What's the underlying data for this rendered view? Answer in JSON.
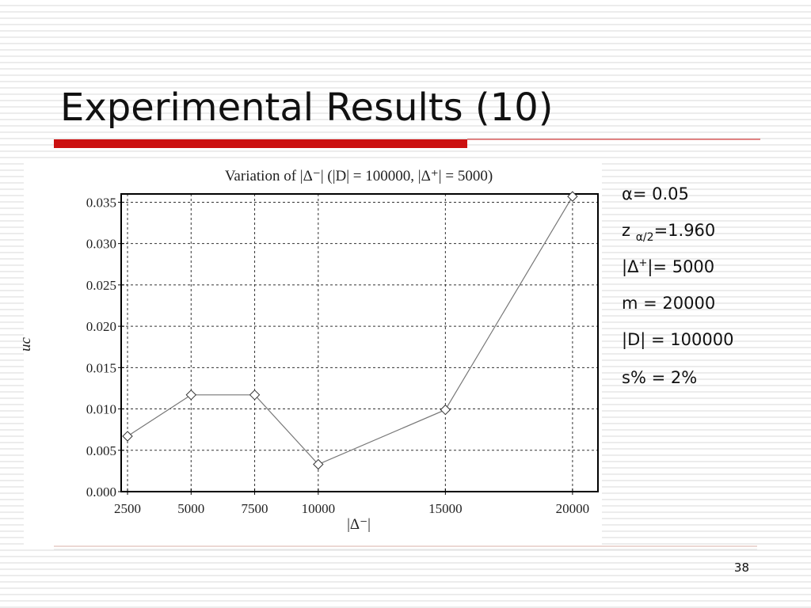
{
  "title": "Experimental Results (10)",
  "notes": [
    "α= 0.05",
    {
      "base": "z ",
      "sub": "α/2",
      "rest": "=1.960"
    },
    {
      "base": "|Δ",
      "sup": "+",
      "rest": "|= 5000"
    },
    "m = 20000",
    "|D| = 100000",
    "s% = 2%"
  ],
  "page_number": "38",
  "chart_data": {
    "type": "line",
    "title": "Variation of |Δ⁻| (|D| = 100000, |Δ⁺| = 5000)",
    "x_label": "|Δ⁻|",
    "y_label": "uc",
    "x": [
      2500,
      5000,
      7500,
      10000,
      15000,
      20000
    ],
    "series": [
      {
        "color": "#777777",
        "values": [
          0.0067,
          0.0117,
          0.0117,
          0.0033,
          0.0099,
          0.0357
        ]
      }
    ],
    "xlim": [
      2250,
      21000
    ],
    "ylim": [
      0,
      0.036
    ],
    "xticks": [
      2500,
      5000,
      7500,
      10000,
      15000,
      20000
    ],
    "yticks": [
      {
        "value": 0,
        "label": "0.000"
      },
      0.005,
      {
        "value": 0.01,
        "label": "0.010"
      },
      0.015,
      {
        "value": 0.02,
        "label": "0.020"
      },
      0.025,
      {
        "value": 0.03,
        "label": "0.030"
      },
      0.035
    ],
    "grid": true
  }
}
